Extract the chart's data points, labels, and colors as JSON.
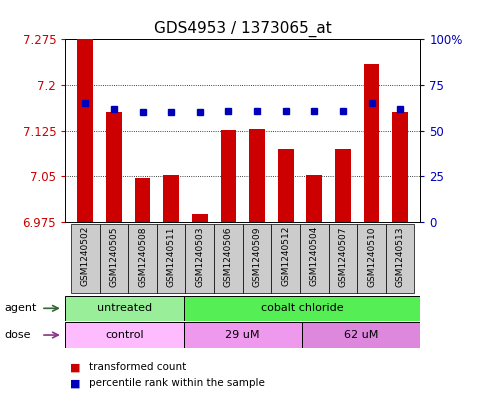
{
  "title": "GDS4953 / 1373065_at",
  "samples": [
    "GSM1240502",
    "GSM1240505",
    "GSM1240508",
    "GSM1240511",
    "GSM1240503",
    "GSM1240506",
    "GSM1240509",
    "GSM1240512",
    "GSM1240504",
    "GSM1240507",
    "GSM1240510",
    "GSM1240513"
  ],
  "bar_values": [
    7.275,
    7.155,
    7.048,
    7.052,
    6.988,
    7.126,
    7.128,
    7.095,
    7.052,
    7.095,
    7.235,
    7.155
  ],
  "dot_values": [
    65,
    62,
    60,
    60,
    60,
    61,
    61,
    61,
    61,
    61,
    65,
    62
  ],
  "ylim_left": [
    6.975,
    7.275
  ],
  "ylim_right": [
    0,
    100
  ],
  "yticks_left": [
    6.975,
    7.05,
    7.125,
    7.2,
    7.275
  ],
  "ytick_labels_left": [
    "6.975",
    "7.05",
    "7.125",
    "7.2",
    "7.275"
  ],
  "yticks_right": [
    0,
    25,
    50,
    75,
    100
  ],
  "ytick_labels_right": [
    "0",
    "25",
    "50",
    "75",
    "100%"
  ],
  "bar_color": "#cc0000",
  "dot_color": "#0000bb",
  "agent_groups": [
    {
      "label": "untreated",
      "start": 0,
      "end": 3,
      "color": "#99ee99"
    },
    {
      "label": "cobalt chloride",
      "start": 4,
      "end": 11,
      "color": "#55ee55"
    }
  ],
  "dose_groups": [
    {
      "label": "control",
      "start": 0,
      "end": 3,
      "color": "#ffbbff"
    },
    {
      "label": "29 uM",
      "start": 4,
      "end": 7,
      "color": "#ee99ee"
    },
    {
      "label": "62 uM",
      "start": 8,
      "end": 11,
      "color": "#dd88dd"
    }
  ],
  "legend_bar_label": "transformed count",
  "legend_dot_label": "percentile rank within the sample",
  "agent_label": "agent",
  "dose_label": "dose",
  "background_color": "#ffffff",
  "plot_bg_color": "#ffffff",
  "xtick_box_color": "#cccccc",
  "grid_linestyle": "dotted",
  "title_fontsize": 11,
  "tick_fontsize": 8.5,
  "sample_fontsize": 6.5
}
